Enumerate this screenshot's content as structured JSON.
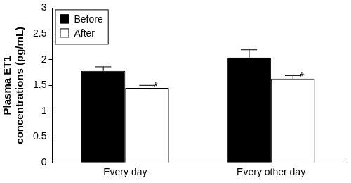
{
  "chart_data": {
    "type": "bar",
    "categories": [
      "Every day",
      "Every other day"
    ],
    "series": [
      {
        "name": "Before",
        "color": "#000000",
        "values": [
          1.78,
          2.04
        ],
        "errors": [
          0.08,
          0.15
        ]
      },
      {
        "name": "After",
        "color": "#ffffff",
        "values": [
          1.45,
          1.63
        ],
        "errors": [
          0.05,
          0.06
        ]
      }
    ],
    "y_label": "Plasma ET1 concentrations (pg/mL)",
    "ylim": [
      0,
      3
    ],
    "yticks": [
      0,
      0.5,
      1,
      1.5,
      2,
      2.5,
      3
    ],
    "grid": false,
    "legend": "upper left",
    "annotations": [
      {
        "text": "*",
        "category": "Every day",
        "series": "After"
      },
      {
        "text": "*",
        "category": "Every other day",
        "series": "After"
      }
    ]
  }
}
